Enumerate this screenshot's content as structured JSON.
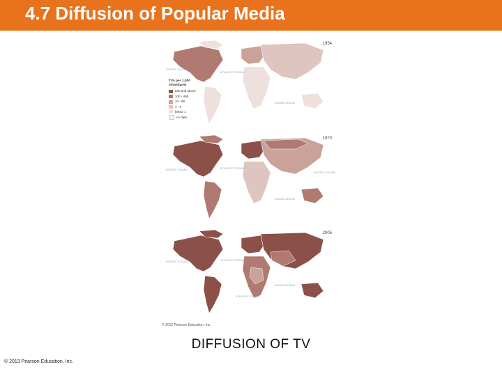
{
  "slide": {
    "title": "4.7 Diffusion of Popular Media",
    "caption": "DIFFUSION OF TV",
    "copyright": "© 2013 Pearson Education, Inc."
  },
  "figure": {
    "credit": "© 2012 Pearson Education, Inc.",
    "maps": [
      {
        "year": "1954"
      },
      {
        "year": "1970"
      },
      {
        "year": "2005"
      }
    ],
    "legend": {
      "title": "TVs per 1,000 inhabitants",
      "items": [
        {
          "label": "500 and above",
          "color": "#8b5148"
        },
        {
          "label": "100 - 499",
          "color": "#b07a70"
        },
        {
          "label": "10 - 99",
          "color": "#c9a29a"
        },
        {
          "label": "1 - 9",
          "color": "#dfc5bf"
        },
        {
          "label": "below 1",
          "color": "#eee0dd"
        },
        {
          "label": "no data",
          "color": "#f7f2f1"
        }
      ]
    },
    "ocean_labels": [
      "PACIFIC OCEAN",
      "ATLANTIC OCEAN",
      "INDIAN OCEAN",
      "PACIFIC OCEAN",
      "ATLANTIC OCEAN"
    ],
    "colors": {
      "title_bar": "#e8731c",
      "ocean": "#ffffff",
      "land_dark": "#8b5148",
      "land_mid": "#b07a70",
      "land_light": "#dfc5bf",
      "land_faint": "#eee0dd"
    }
  }
}
